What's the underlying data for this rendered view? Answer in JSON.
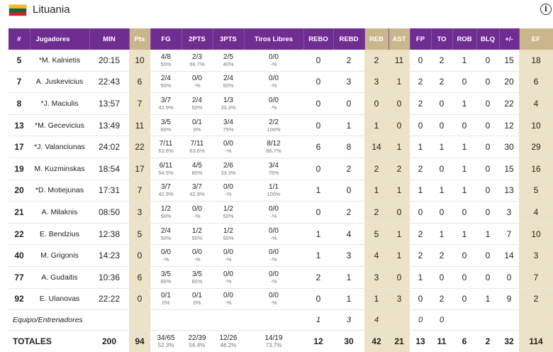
{
  "team": {
    "name": "Lituania",
    "flag_colors": [
      "#FDB913",
      "#006A44",
      "#C1272D"
    ]
  },
  "colors": {
    "header": "#6f2d91",
    "highlight_header": "#c9b68a",
    "highlight_cell": "#ece2c7"
  },
  "columns": [
    "#",
    "Jugadores",
    "MIN",
    "Pts",
    "FG",
    "2PTS",
    "3PTS",
    "Tiros Libres",
    "REBO",
    "REBD",
    "REB",
    "AST",
    "FP",
    "TO",
    "ROB",
    "BLQ",
    "+/-",
    "EF"
  ],
  "players": [
    {
      "num": "5",
      "name": "*M. Kalnietis",
      "min": "20:15",
      "pts": "10",
      "fg": "4/8",
      "fg_pct": "50%",
      "p2": "2/3",
      "p2_pct": "66.7%",
      "p3": "2/5",
      "p3_pct": "40%",
      "ft": "0/0",
      "ft_pct": "-%",
      "rebo": "0",
      "rebd": "2",
      "reb": "2",
      "ast": "11",
      "fp": "0",
      "to": "2",
      "rob": "1",
      "blq": "0",
      "pm": "15",
      "ef": "18"
    },
    {
      "num": "7",
      "name": "A. Juskevicius",
      "min": "22:43",
      "pts": "6",
      "fg": "2/4",
      "fg_pct": "50%",
      "p2": "0/0",
      "p2_pct": "-%",
      "p3": "2/4",
      "p3_pct": "50%",
      "ft": "0/0",
      "ft_pct": "-%",
      "rebo": "0",
      "rebd": "3",
      "reb": "3",
      "ast": "1",
      "fp": "2",
      "to": "2",
      "rob": "0",
      "blq": "0",
      "pm": "20",
      "ef": "6"
    },
    {
      "num": "8",
      "name": "*J. Maciulis",
      "min": "13:57",
      "pts": "7",
      "fg": "3/7",
      "fg_pct": "42.9%",
      "p2": "2/4",
      "p2_pct": "50%",
      "p3": "1/3",
      "p3_pct": "33.3%",
      "ft": "0/0",
      "ft_pct": "-%",
      "rebo": "0",
      "rebd": "0",
      "reb": "0",
      "ast": "0",
      "fp": "2",
      "to": "0",
      "rob": "1",
      "blq": "0",
      "pm": "22",
      "ef": "4"
    },
    {
      "num": "13",
      "name": "*M. Gecevicius",
      "min": "13:49",
      "pts": "11",
      "fg": "3/5",
      "fg_pct": "60%",
      "p2": "0/1",
      "p2_pct": "0%",
      "p3": "3/4",
      "p3_pct": "75%",
      "ft": "2/2",
      "ft_pct": "100%",
      "rebo": "0",
      "rebd": "1",
      "reb": "1",
      "ast": "0",
      "fp": "0",
      "to": "0",
      "rob": "0",
      "blq": "0",
      "pm": "12",
      "ef": "10"
    },
    {
      "num": "17",
      "name": "*J. Valanciunas",
      "min": "24:02",
      "pts": "22",
      "fg": "7/11",
      "fg_pct": "63.6%",
      "p2": "7/11",
      "p2_pct": "63.6%",
      "p3": "0/0",
      "p3_pct": "-%",
      "ft": "8/12",
      "ft_pct": "66.7%",
      "rebo": "6",
      "rebd": "8",
      "reb": "14",
      "ast": "1",
      "fp": "1",
      "to": "1",
      "rob": "1",
      "blq": "0",
      "pm": "30",
      "ef": "29"
    },
    {
      "num": "19",
      "name": "M. Kuzminskas",
      "min": "18:54",
      "pts": "17",
      "fg": "6/11",
      "fg_pct": "54.5%",
      "p2": "4/5",
      "p2_pct": "80%",
      "p3": "2/6",
      "p3_pct": "33.3%",
      "ft": "3/4",
      "ft_pct": "75%",
      "rebo": "0",
      "rebd": "2",
      "reb": "2",
      "ast": "2",
      "fp": "2",
      "to": "0",
      "rob": "1",
      "blq": "0",
      "pm": "15",
      "ef": "16"
    },
    {
      "num": "20",
      "name": "*D. Motiejunas",
      "min": "17:31",
      "pts": "7",
      "fg": "3/7",
      "fg_pct": "42.9%",
      "p2": "3/7",
      "p2_pct": "42.9%",
      "p3": "0/0",
      "p3_pct": "-%",
      "ft": "1/1",
      "ft_pct": "100%",
      "rebo": "1",
      "rebd": "0",
      "reb": "1",
      "ast": "1",
      "fp": "1",
      "to": "1",
      "rob": "1",
      "blq": "0",
      "pm": "13",
      "ef": "5"
    },
    {
      "num": "21",
      "name": "A. Milaknis",
      "min": "08:50",
      "pts": "3",
      "fg": "1/2",
      "fg_pct": "50%",
      "p2": "0/0",
      "p2_pct": "-%",
      "p3": "1/2",
      "p3_pct": "50%",
      "ft": "0/0",
      "ft_pct": "-%",
      "rebo": "0",
      "rebd": "2",
      "reb": "2",
      "ast": "0",
      "fp": "0",
      "to": "0",
      "rob": "0",
      "blq": "0",
      "pm": "3",
      "ef": "4"
    },
    {
      "num": "22",
      "name": "E. Bendzius",
      "min": "12:38",
      "pts": "5",
      "fg": "2/4",
      "fg_pct": "50%",
      "p2": "1/2",
      "p2_pct": "50%",
      "p3": "1/2",
      "p3_pct": "50%",
      "ft": "0/0",
      "ft_pct": "-%",
      "rebo": "1",
      "rebd": "4",
      "reb": "5",
      "ast": "1",
      "fp": "2",
      "to": "1",
      "rob": "1",
      "blq": "1",
      "pm": "7",
      "ef": "10"
    },
    {
      "num": "40",
      "name": "M. Grigonis",
      "min": "14:23",
      "pts": "0",
      "fg": "0/0",
      "fg_pct": "-%",
      "p2": "0/0",
      "p2_pct": "-%",
      "p3": "0/0",
      "p3_pct": "-%",
      "ft": "0/0",
      "ft_pct": "-%",
      "rebo": "1",
      "rebd": "3",
      "reb": "4",
      "ast": "1",
      "fp": "2",
      "to": "2",
      "rob": "0",
      "blq": "0",
      "pm": "14",
      "ef": "3"
    },
    {
      "num": "77",
      "name": "A. Gudaitis",
      "min": "10:36",
      "pts": "6",
      "fg": "3/5",
      "fg_pct": "60%",
      "p2": "3/5",
      "p2_pct": "60%",
      "p3": "0/0",
      "p3_pct": "-%",
      "ft": "0/0",
      "ft_pct": "-%",
      "rebo": "2",
      "rebd": "1",
      "reb": "3",
      "ast": "0",
      "fp": "1",
      "to": "0",
      "rob": "0",
      "blq": "0",
      "pm": "0",
      "ef": "7"
    },
    {
      "num": "92",
      "name": "E. Ulanovas",
      "min": "22:22",
      "pts": "0",
      "fg": "0/1",
      "fg_pct": "0%",
      "p2": "0/1",
      "p2_pct": "0%",
      "p3": "0/0",
      "p3_pct": "-%",
      "ft": "0/0",
      "ft_pct": "-%",
      "rebo": "0",
      "rebd": "1",
      "reb": "1",
      "ast": "3",
      "fp": "0",
      "to": "2",
      "rob": "0",
      "blq": "1",
      "pm": "9",
      "ef": "2"
    }
  ],
  "equipo": {
    "label": "Equipo/Entrenadores",
    "rebo": "1",
    "rebd": "3",
    "reb": "4",
    "fp": "0",
    "to": "0"
  },
  "totales": {
    "label": "TOTALES",
    "min": "200",
    "pts": "94",
    "fg": "34/65",
    "fg_pct": "52.3%",
    "p2": "22/39",
    "p2_pct": "56.4%",
    "p3": "12/26",
    "p3_pct": "46.2%",
    "ft": "14/19",
    "ft_pct": "73.7%",
    "rebo": "12",
    "rebd": "30",
    "reb": "42",
    "ast": "21",
    "fp": "13",
    "to": "11",
    "rob": "6",
    "blq": "2",
    "pm": "32",
    "ef": "114"
  }
}
